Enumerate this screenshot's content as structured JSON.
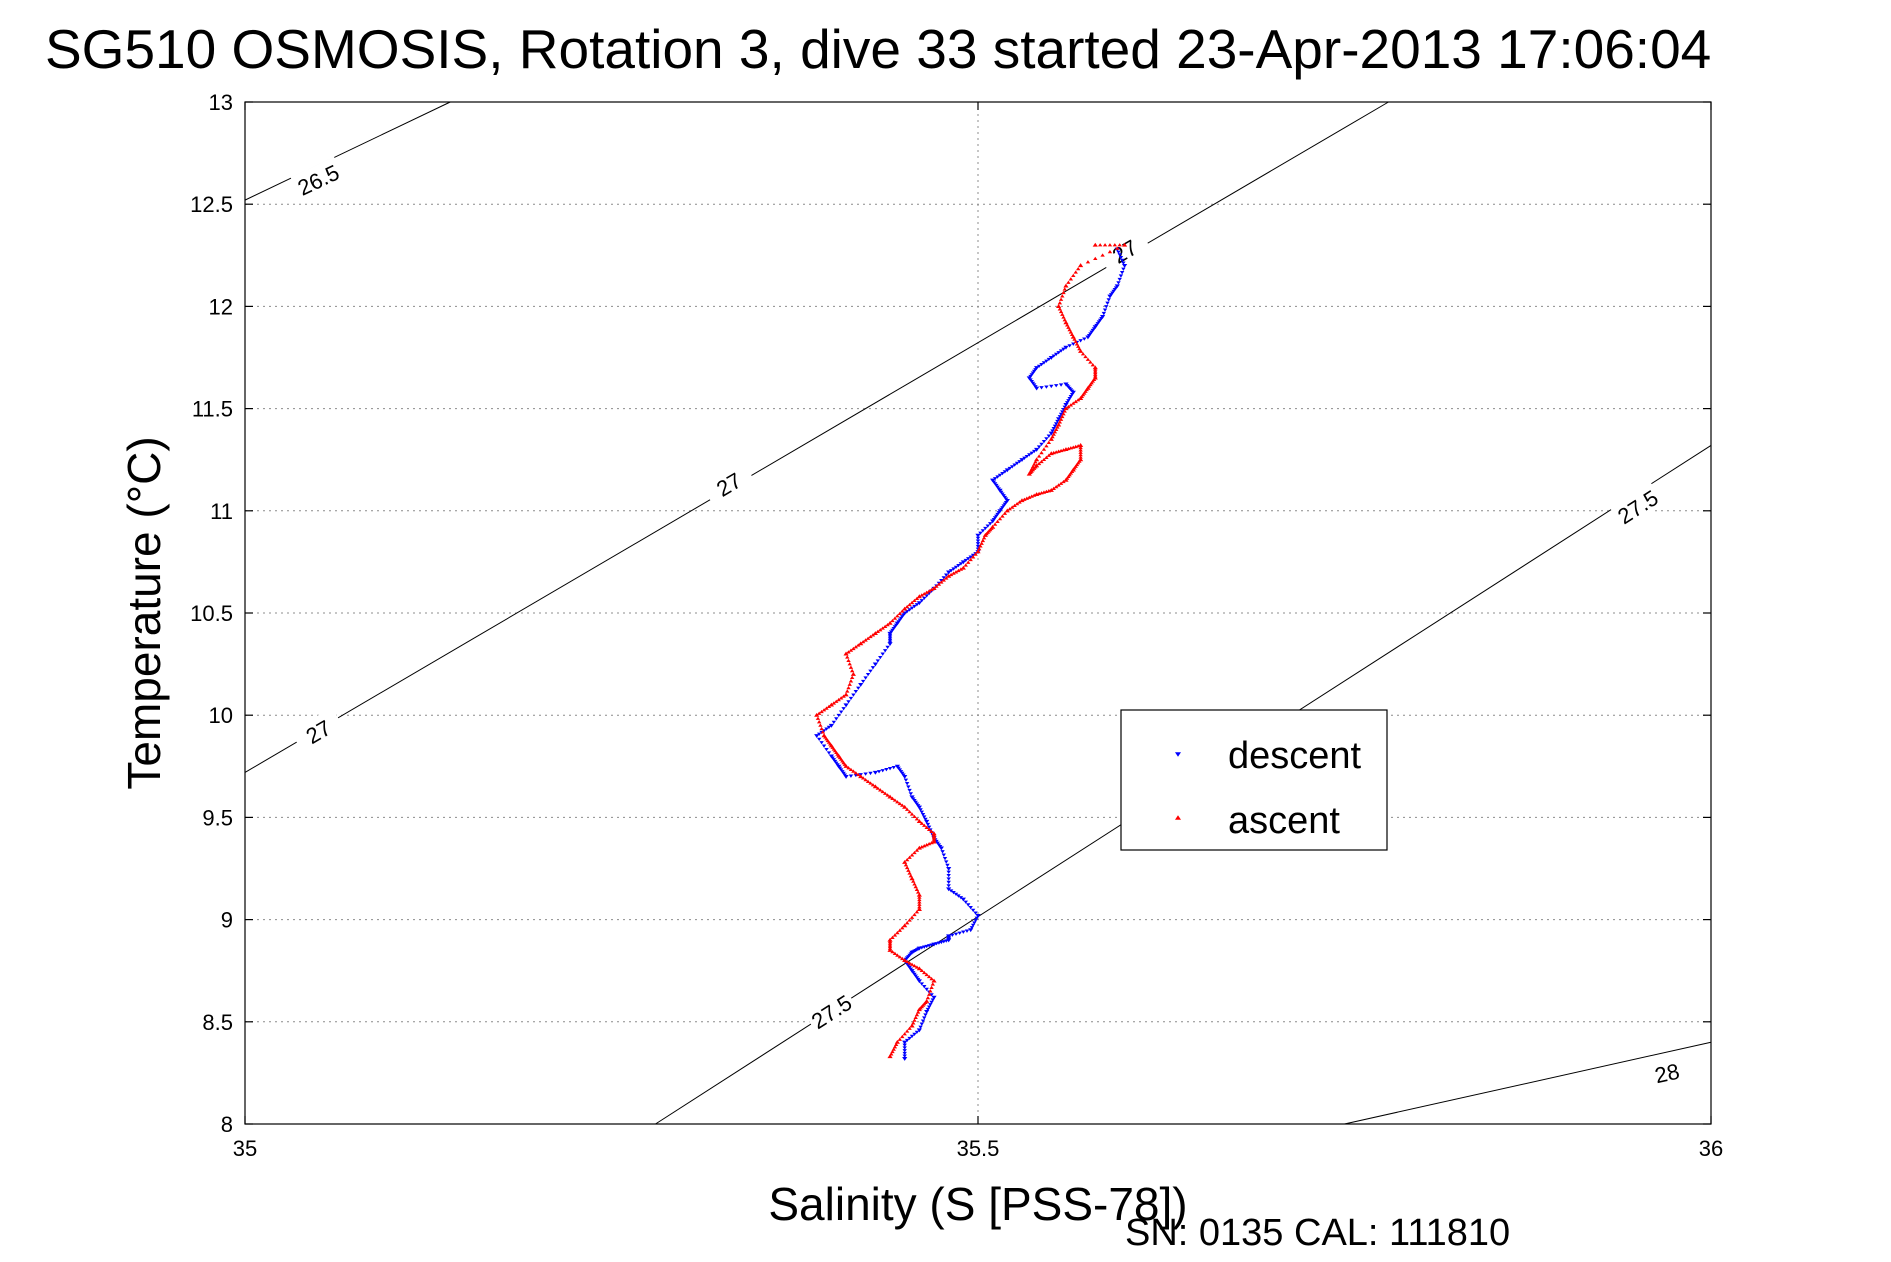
{
  "chart_data": {
    "type": "scatter",
    "title": "SG510 OSMOSIS, Rotation 3, dive 33 started 23-Apr-2013 17:06:04",
    "xlabel": "Salinity (S [PSS-78])",
    "ylabel": "Temperature (°C)",
    "xlim": [
      35,
      36
    ],
    "ylim": [
      8,
      13
    ],
    "x_ticks": [
      "35",
      "35.5",
      "36"
    ],
    "y_ticks": [
      "8",
      "8.5",
      "9",
      "9.5",
      "10",
      "10.5",
      "11",
      "11.5",
      "12",
      "12.5",
      "13"
    ],
    "grid": true,
    "legend_position": "right",
    "density_contours": [
      {
        "label": "26.5",
        "points": [
          [
            35.0,
            12.52
          ],
          [
            35.14,
            13.0
          ]
        ],
        "label_at": [
          35.05,
          12.62
        ]
      },
      {
        "label": "27",
        "points": [
          [
            35.0,
            9.72
          ],
          [
            35.78,
            13.0
          ]
        ],
        "label_at": [
          [
            35.05,
            9.92
          ],
          [
            35.33,
            11.13
          ],
          [
            35.6,
            12.27
          ]
        ]
      },
      {
        "label": "27.5",
        "points": [
          [
            35.28,
            8.0
          ],
          [
            36.0,
            11.32
          ]
        ],
        "label_at": [
          [
            35.4,
            8.55
          ],
          [
            35.95,
            11.02
          ]
        ]
      },
      {
        "label": "28",
        "points": [
          [
            35.75,
            8.0
          ],
          [
            36.0,
            8.4
          ]
        ],
        "label_at": [
          35.97,
          8.25
        ]
      }
    ],
    "series": [
      {
        "name": "descent",
        "color": "#0000ff",
        "marker": "triangle-down",
        "x": [
          35.45,
          35.45,
          35.46,
          35.465,
          35.47,
          35.46,
          35.455,
          35.45,
          35.455,
          35.46,
          35.47,
          35.48,
          35.48,
          35.495,
          35.5,
          35.49,
          35.48,
          35.48,
          35.475,
          35.47,
          35.465,
          35.46,
          35.455,
          35.45,
          35.445,
          35.43,
          35.41,
          35.405,
          35.4,
          35.39,
          35.4,
          35.41,
          35.42,
          35.43,
          35.44,
          35.44,
          35.445,
          35.45,
          35.46,
          35.47,
          35.48,
          35.49,
          35.5,
          35.5,
          35.51,
          35.515,
          35.52,
          35.515,
          35.51,
          35.52,
          35.53,
          35.54,
          35.55,
          35.555,
          35.56,
          35.565,
          35.56,
          35.54,
          35.535,
          35.54,
          35.55,
          35.56,
          35.575,
          35.58,
          35.585,
          35.59,
          35.595,
          35.6,
          35.595
        ],
        "y": [
          8.32,
          8.4,
          8.46,
          8.55,
          8.62,
          8.7,
          8.75,
          8.8,
          8.84,
          8.86,
          8.88,
          8.9,
          8.92,
          8.95,
          9.02,
          9.1,
          9.15,
          9.25,
          9.35,
          9.4,
          9.48,
          9.55,
          9.6,
          9.7,
          9.75,
          9.72,
          9.7,
          9.75,
          9.8,
          9.9,
          9.95,
          10.05,
          10.15,
          10.25,
          10.35,
          10.4,
          10.45,
          10.5,
          10.55,
          10.62,
          10.7,
          10.75,
          10.8,
          10.88,
          10.95,
          11.0,
          11.05,
          11.1,
          11.15,
          11.2,
          11.25,
          11.3,
          11.38,
          11.45,
          11.52,
          11.58,
          11.62,
          11.6,
          11.65,
          11.7,
          11.75,
          11.8,
          11.85,
          11.9,
          11.95,
          12.05,
          12.1,
          12.2,
          12.28
        ]
      },
      {
        "name": "ascent",
        "color": "#ff0000",
        "marker": "triangle-up",
        "x": [
          35.44,
          35.445,
          35.455,
          35.46,
          35.465,
          35.47,
          35.46,
          35.45,
          35.44,
          35.44,
          35.45,
          35.46,
          35.46,
          35.455,
          35.45,
          35.46,
          35.47,
          35.47,
          35.46,
          35.45,
          35.44,
          35.43,
          35.42,
          35.41,
          35.405,
          35.4,
          35.395,
          35.39,
          35.4,
          35.41,
          35.415,
          35.41,
          35.42,
          35.43,
          35.44,
          35.45,
          35.46,
          35.47,
          35.48,
          35.49,
          35.5,
          35.505,
          35.51,
          35.52,
          35.53,
          35.54,
          35.55,
          35.56,
          35.565,
          35.57,
          35.57,
          35.56,
          35.55,
          35.54,
          35.535,
          35.54,
          35.55,
          35.555,
          35.56,
          35.57,
          35.575,
          35.58,
          35.58,
          35.57,
          35.565,
          35.56,
          35.555,
          35.56,
          35.57,
          35.6,
          35.58
        ],
        "y": [
          8.33,
          8.4,
          8.48,
          8.56,
          8.6,
          8.7,
          8.76,
          8.8,
          8.85,
          8.9,
          8.97,
          9.05,
          9.12,
          9.2,
          9.28,
          9.35,
          9.38,
          9.42,
          9.48,
          9.55,
          9.6,
          9.65,
          9.7,
          9.75,
          9.8,
          9.85,
          9.9,
          10.0,
          10.05,
          10.1,
          10.2,
          10.3,
          10.35,
          10.4,
          10.45,
          10.52,
          10.58,
          10.62,
          10.68,
          10.72,
          10.8,
          10.88,
          10.92,
          11.0,
          11.05,
          11.08,
          11.1,
          11.15,
          11.2,
          11.25,
          11.32,
          11.3,
          11.28,
          11.22,
          11.18,
          11.25,
          11.35,
          11.42,
          11.5,
          11.55,
          11.6,
          11.65,
          11.7,
          11.78,
          11.85,
          11.92,
          12.0,
          12.1,
          12.2,
          12.3,
          12.3
        ]
      }
    ],
    "legend": [
      {
        "label": "descent",
        "color": "#0000ff",
        "marker": "triangle-down"
      },
      {
        "label": "ascent",
        "color": "#ff0000",
        "marker": "triangle-up"
      }
    ]
  },
  "footer": {
    "serial": "SN: 0135  CAL: 111810"
  }
}
